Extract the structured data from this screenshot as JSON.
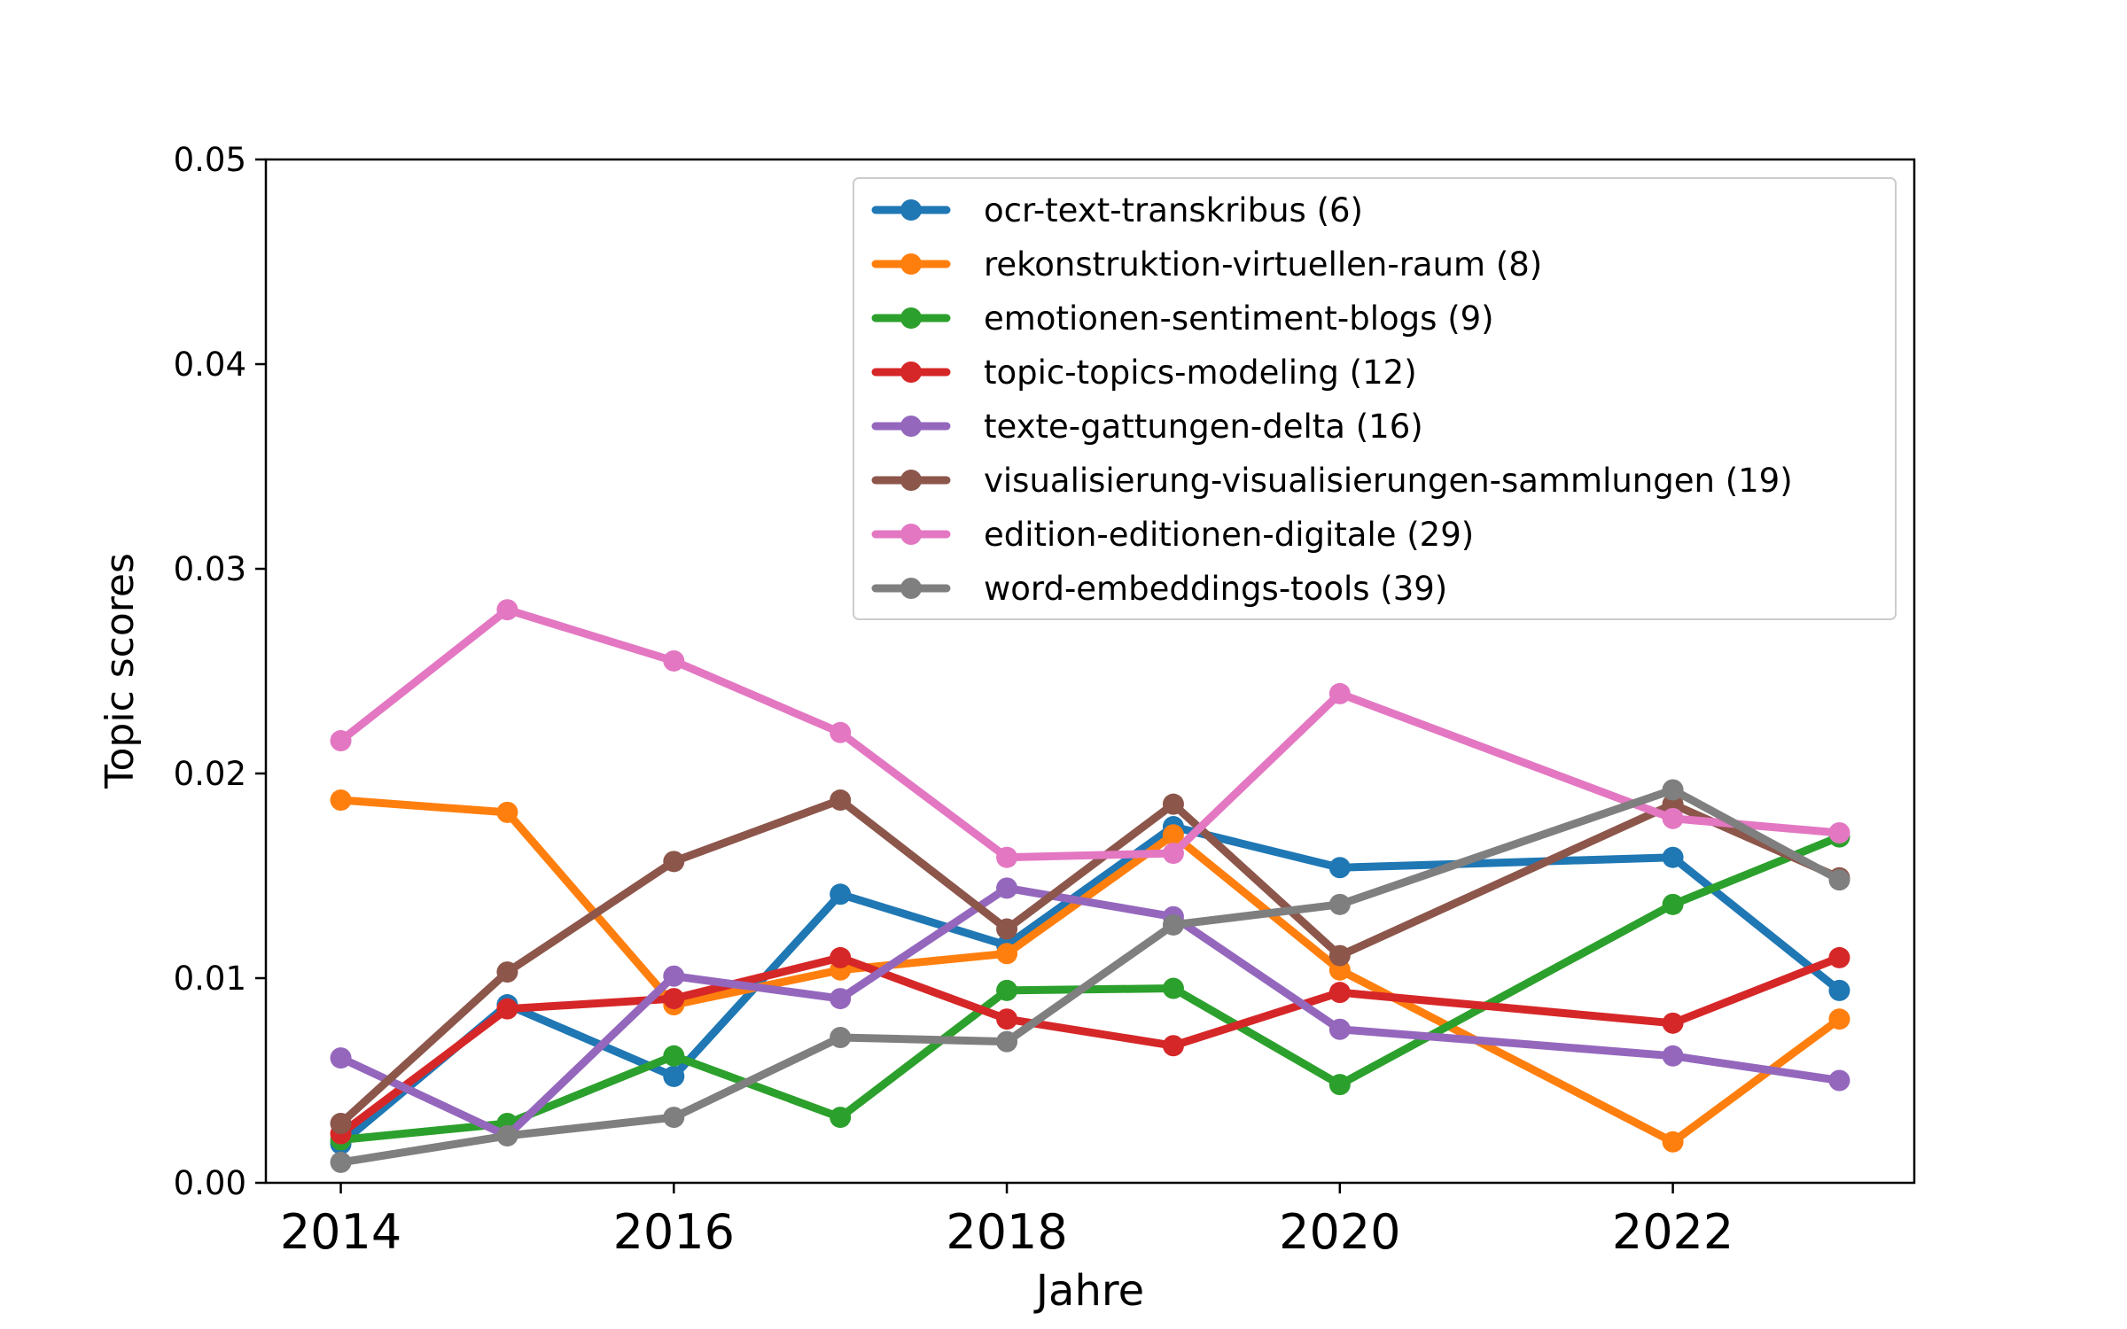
{
  "chart_data": {
    "type": "line",
    "title": "",
    "xlabel": "Jahre",
    "ylabel": "Topic scores",
    "xlim": [
      2013.55,
      2023.45
    ],
    "ylim": [
      0,
      0.05
    ],
    "x_ticks": [
      2014,
      2016,
      2018,
      2020,
      2022
    ],
    "y_ticks": [
      0.0,
      0.01,
      0.02,
      0.03,
      0.04,
      0.05
    ],
    "x_tick_labels": [
      "2014",
      "2016",
      "2018",
      "2020",
      "2022"
    ],
    "y_tick_labels": [
      "0.00",
      "0.01",
      "0.02",
      "0.03",
      "0.04",
      "0.05"
    ],
    "grid": false,
    "legend_position": "top-right",
    "x": [
      2014,
      2015,
      2016,
      2017,
      2018,
      2019,
      2020,
      2022,
      2023
    ],
    "series": [
      {
        "name": "ocr-text-transkribus (6)",
        "color": "#1f77b4",
        "values": [
          0.0019,
          0.0087,
          0.0052,
          0.0141,
          0.0116,
          0.0174,
          0.0154,
          0.0159,
          0.0094
        ]
      },
      {
        "name": "rekonstruktion-virtuellen-raum (8)",
        "color": "#ff7f0e",
        "values": [
          0.0187,
          0.0181,
          0.0087,
          0.0104,
          0.0112,
          0.017,
          0.0104,
          0.002,
          0.008
        ]
      },
      {
        "name": "emotionen-sentiment-blogs (9)",
        "color": "#2ca02c",
        "values": [
          0.0021,
          0.0029,
          0.0062,
          0.0032,
          0.0094,
          0.0095,
          0.0048,
          0.0136,
          0.0169
        ]
      },
      {
        "name": "topic-topics-modeling (12)",
        "color": "#d62728",
        "values": [
          0.0024,
          0.0085,
          0.009,
          0.011,
          0.008,
          0.0067,
          0.0093,
          0.0078,
          0.011
        ]
      },
      {
        "name": "texte-gattungen-delta (16)",
        "color": "#9467bd",
        "values": [
          0.0061,
          0.0023,
          0.0101,
          0.009,
          0.0144,
          0.013,
          0.0075,
          0.0062,
          0.005
        ]
      },
      {
        "name": "visualisierung-visualisierungen-sammlungen (19)",
        "color": "#8c564b",
        "values": [
          0.0029,
          0.0103,
          0.0157,
          0.0187,
          0.0124,
          0.0185,
          0.0111,
          0.0185,
          0.0149
        ]
      },
      {
        "name": "edition-editionen-digitale (29)",
        "color": "#e377c2",
        "values": [
          0.0216,
          0.028,
          0.0255,
          0.022,
          0.0159,
          0.0161,
          0.0239,
          0.0178,
          0.0171
        ]
      },
      {
        "name": "word-embeddings-tools (39)",
        "color": "#7f7f7f",
        "values": [
          0.001,
          0.0023,
          0.0032,
          0.0071,
          0.0069,
          0.0126,
          0.0136,
          0.0192,
          0.0148
        ]
      }
    ]
  }
}
